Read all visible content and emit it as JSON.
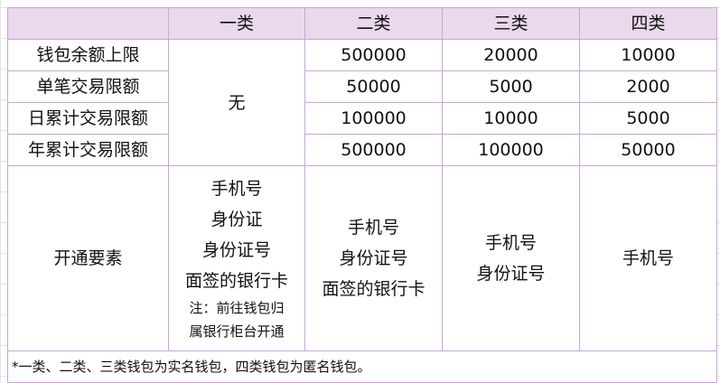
{
  "header": [
    "",
    "一类",
    "二类",
    "三类",
    "四类"
  ],
  "rows": [
    {
      "label": "钱包余额上限",
      "class2": "500000",
      "class3": "20000",
      "class4": "10000"
    },
    {
      "label": "单笔交易限额",
      "class2": "50000",
      "class3": "5000",
      "class4": "2000"
    },
    {
      "label": "日累计交易限额",
      "class2": "100000",
      "class3": "10000",
      "class4": "5000"
    },
    {
      "label": "年累计交易限额",
      "class2": "500000",
      "class3": "100000",
      "class4": "50000"
    }
  ],
  "class1_limits": "无",
  "open_row": {
    "label": "开通要素",
    "class1": [
      "手机号",
      "身份证",
      "身份证号",
      "面签的银行卡"
    ],
    "class1_note": [
      "注：前往钱包归",
      "属银行柜台开通"
    ],
    "class2": [
      "手机号",
      "身份证号",
      "面签的银行卡"
    ],
    "class3": [
      "手机号",
      "身份证号"
    ],
    "class4": [
      "手机号"
    ]
  },
  "footnote": "*一类、二类、三类钱包为实名钱包，四类钱包为匿名钱包。",
  "colors": {
    "header_bg": "#ead8ec",
    "border": "#c7a6d8"
  }
}
